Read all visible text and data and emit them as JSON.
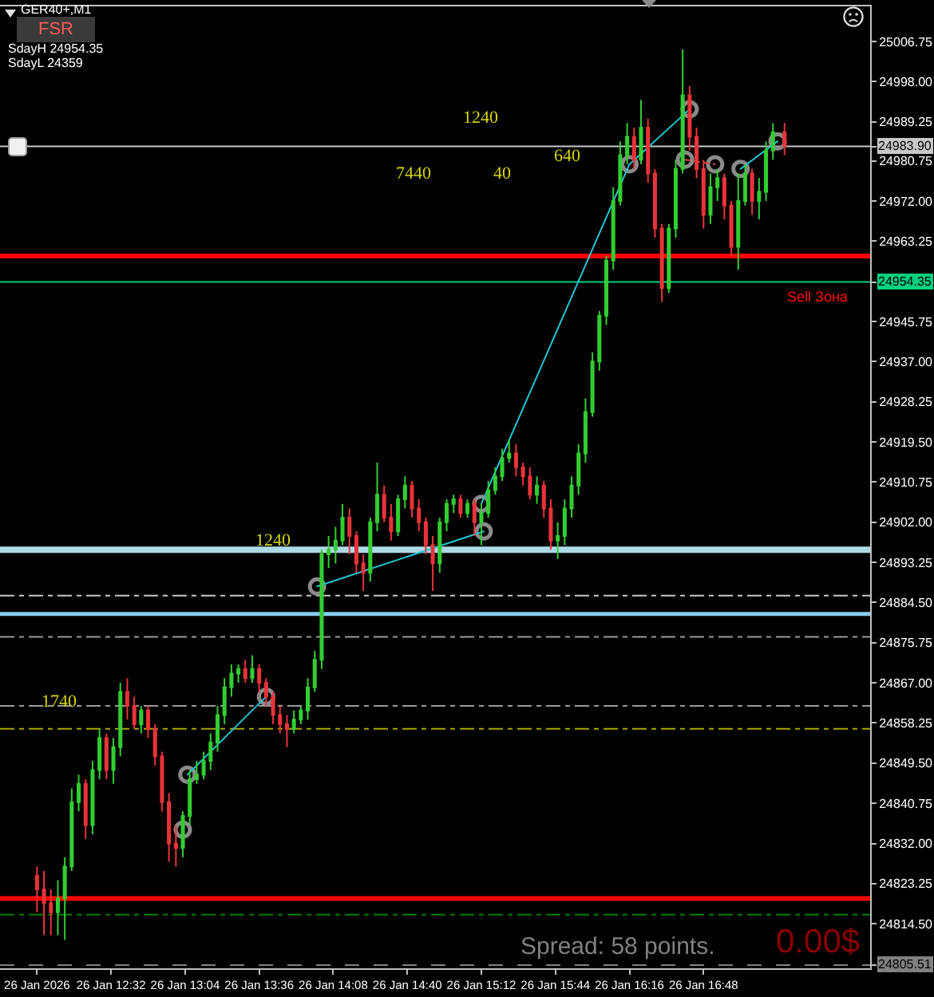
{
  "chart_data": {
    "type": "candlestick",
    "title": "GER40+,M1",
    "xlim": [
      "2026-01-26T11:44",
      "2026-01-26T18:00"
    ],
    "xticks": [
      {
        "value": "2026-01-26T12:00",
        "label": "26 Jan 2026"
      },
      {
        "value": "2026-01-26T12:32",
        "label": "26 Jan 12:32"
      },
      {
        "value": "2026-01-26T13:04",
        "label": "26 Jan 13:04"
      },
      {
        "value": "2026-01-26T13:36",
        "label": "26 Jan 13:36"
      },
      {
        "value": "2026-01-26T14:08",
        "label": "26 Jan 14:08"
      },
      {
        "value": "2026-01-26T14:40",
        "label": "26 Jan 14:40"
      },
      {
        "value": "2026-01-26T15:12",
        "label": "26 Jan 15:12"
      },
      {
        "value": "2026-01-26T15:44",
        "label": "26 Jan 15:44"
      },
      {
        "value": "2026-01-26T16:16",
        "label": "26 Jan 16:16"
      },
      {
        "value": "2026-01-26T16:48",
        "label": "26 Jan 16:48"
      }
    ],
    "ylim": [
      24804.8,
      25014.4
    ],
    "yticks": [
      25006.75,
      {
        "value": 24998,
        "label": "24998.00"
      },
      24989.25,
      {
        "value": 24983.9,
        "label": "24983.90"
      },
      24980.75,
      {
        "value": 24972,
        "label": "24972.00"
      },
      24963.25,
      24954.35,
      24945.75,
      {
        "value": 24937,
        "label": "24937.00"
      },
      24928.25,
      {
        "value": 24919.5,
        "label": "24919.50"
      },
      24910.75,
      {
        "value": 24902,
        "label": "24902.00"
      },
      24893.25,
      {
        "value": 24884.5,
        "label": "24884.50"
      },
      24875.75,
      {
        "value": 24867,
        "label": "24867.00"
      },
      24858.25,
      {
        "value": 24849.5,
        "label": "24849.50"
      },
      24840.75,
      {
        "value": 24832,
        "label": "24832.00"
      },
      24823.25,
      {
        "value": 24814.5,
        "label": "24814.50"
      },
      24805.51
    ],
    "grid": false,
    "ref_lines": [
      {
        "axis": "y",
        "value": 24983.9,
        "color": "#c8c8c8",
        "line_style": "solid"
      },
      {
        "axis": "y",
        "value": 24960,
        "color": "#ff0000",
        "line_style": "solid",
        "label": "Sell Зона"
      },
      {
        "axis": "y",
        "value": 24954.35,
        "color": "#00d080",
        "line_style": "solid"
      },
      {
        "axis": "y",
        "value": 24896,
        "color": "#add8e6",
        "line_style": "solid"
      },
      {
        "axis": "y",
        "value": 24886,
        "color": "#c8c8c8",
        "line_style": "dashdot"
      },
      {
        "axis": "y",
        "value": 24882,
        "color": "#87ceeb",
        "line_style": "solid"
      },
      {
        "axis": "y",
        "value": 24877,
        "color": "#9a9a9a",
        "line_style": "dashdot"
      },
      {
        "axis": "y",
        "value": 24862,
        "color": "#9a9a9a",
        "line_style": "dashdot"
      },
      {
        "axis": "y",
        "value": 24857,
        "color": "#a8a800",
        "line_style": "dashdot"
      },
      {
        "axis": "y",
        "value": 24820,
        "color": "#ff0000",
        "line_style": "solid"
      },
      {
        "axis": "y",
        "value": 24816.5,
        "color": "#008000",
        "line_style": "dashdot"
      },
      {
        "axis": "y",
        "value": 24805.51,
        "color": "#808080",
        "line_style": "dashed"
      }
    ],
    "annotations": [
      "FSR",
      "SdayH 24954.35",
      "SdayL 24359",
      "1240",
      "7440",
      "40",
      "640",
      "Spread: 58 points.",
      "0.00$",
      {
        "text": "1240",
        "x": "2026-01-26T13:42",
        "y": 24898
      },
      {
        "text": "1740",
        "x": "2026-01-26T12:10",
        "y": 24863
      }
    ],
    "series": [
      {
        "type": "scatter",
        "marker": "circle",
        "color": "#8a8a8a",
        "x": [
          "2026-01-26T13:03",
          "2026-01-26T13:05",
          "2026-01-26T13:39",
          "2026-01-26T14:01",
          "2026-01-26T15:12",
          "2026-01-26T15:13",
          "2026-01-26T16:16",
          "2026-01-26T16:42",
          "2026-01-26T16:40",
          "2026-01-26T16:53",
          "2026-01-26T17:04",
          "2026-01-26T17:20"
        ],
        "values": [
          24835,
          24847,
          24864,
          24888,
          24906,
          24900,
          24980,
          24992,
          24981,
          24980,
          24979,
          24985
        ]
      },
      {
        "type": "line",
        "color": "#22c4d4",
        "line_style": "solid",
        "x": [
          "2026-01-26T13:05",
          "2026-01-26T13:39"
        ],
        "values": [
          24847,
          24864
        ]
      },
      {
        "type": "line",
        "color": "#22c4d4",
        "line_style": "solid",
        "x": [
          "2026-01-26T14:01",
          "2026-01-26T15:13"
        ],
        "values": [
          24888,
          24900
        ]
      },
      {
        "type": "line",
        "color": "#22c4d4",
        "line_style": "solid",
        "x": [
          "2026-01-26T15:12",
          "2026-01-26T16:16",
          "2026-01-26T16:42"
        ],
        "values": [
          24906,
          24980,
          24992
        ]
      },
      {
        "type": "line",
        "color": "#22c4d4",
        "line_style": "solid",
        "x": [
          "2026-01-26T17:04",
          "2026-01-26T17:20"
        ],
        "values": [
          24979,
          24985
        ]
      },
      {
        "type": "line",
        "color": "#e04040",
        "line_style": "dotted",
        "x": [
          "2026-01-26T16:40",
          "2026-01-26T16:53"
        ],
        "values": [
          24981,
          24980
        ]
      },
      {
        "x": [
          "2026-01-26T12:00",
          "2026-01-26T12:03",
          "2026-01-26T12:06",
          "2026-01-26T12:09",
          "2026-01-26T12:12",
          "2026-01-26T12:15",
          "2026-01-26T12:18",
          "2026-01-26T12:21",
          "2026-01-26T12:24",
          "2026-01-26T12:27",
          "2026-01-26T12:30",
          "2026-01-26T12:33",
          "2026-01-26T12:36",
          "2026-01-26T12:39",
          "2026-01-26T12:42",
          "2026-01-26T12:45",
          "2026-01-26T12:48",
          "2026-01-26T12:51",
          "2026-01-26T12:54",
          "2026-01-26T12:57",
          "2026-01-26T13:00",
          "2026-01-26T13:03",
          "2026-01-26T13:06",
          "2026-01-26T13:09",
          "2026-01-26T13:12",
          "2026-01-26T13:15",
          "2026-01-26T13:18",
          "2026-01-26T13:21",
          "2026-01-26T13:24",
          "2026-01-26T13:27",
          "2026-01-26T13:30",
          "2026-01-26T13:33",
          "2026-01-26T13:36",
          "2026-01-26T13:39",
          "2026-01-26T13:42",
          "2026-01-26T13:45",
          "2026-01-26T13:48",
          "2026-01-26T13:51",
          "2026-01-26T13:54",
          "2026-01-26T13:57",
          "2026-01-26T14:00",
          "2026-01-26T14:03",
          "2026-01-26T14:06",
          "2026-01-26T14:09",
          "2026-01-26T14:12",
          "2026-01-26T14:15",
          "2026-01-26T14:18",
          "2026-01-26T14:21",
          "2026-01-26T14:24",
          "2026-01-26T14:27",
          "2026-01-26T14:30",
          "2026-01-26T14:33",
          "2026-01-26T14:36",
          "2026-01-26T14:39",
          "2026-01-26T14:42",
          "2026-01-26T14:45",
          "2026-01-26T14:48",
          "2026-01-26T14:51",
          "2026-01-26T14:54",
          "2026-01-26T14:57",
          "2026-01-26T15:00",
          "2026-01-26T15:03",
          "2026-01-26T15:06",
          "2026-01-26T15:09",
          "2026-01-26T15:12",
          "2026-01-26T15:15",
          "2026-01-26T15:18",
          "2026-01-26T15:21",
          "2026-01-26T15:24",
          "2026-01-26T15:27",
          "2026-01-26T15:30",
          "2026-01-26T15:33",
          "2026-01-26T15:36",
          "2026-01-26T15:39",
          "2026-01-26T15:42",
          "2026-01-26T15:45",
          "2026-01-26T15:48",
          "2026-01-26T15:51",
          "2026-01-26T15:54",
          "2026-01-26T15:57",
          "2026-01-26T16:00",
          "2026-01-26T16:03",
          "2026-01-26T16:06",
          "2026-01-26T16:09",
          "2026-01-26T16:12",
          "2026-01-26T16:15",
          "2026-01-26T16:18",
          "2026-01-26T16:21",
          "2026-01-26T16:24",
          "2026-01-26T16:27",
          "2026-01-26T16:30",
          "2026-01-26T16:33",
          "2026-01-26T16:36",
          "2026-01-26T16:39",
          "2026-01-26T16:42",
          "2026-01-26T16:45",
          "2026-01-26T16:48",
          "2026-01-26T16:51",
          "2026-01-26T16:54",
          "2026-01-26T16:57",
          "2026-01-26T17:00",
          "2026-01-26T17:03",
          "2026-01-26T17:06",
          "2026-01-26T17:09",
          "2026-01-26T17:12",
          "2026-01-26T17:15",
          "2026-01-26T17:18",
          "2026-01-26T17:23"
        ],
        "ohlc": [
          [
            24825,
            24827,
            24817,
            24822
          ],
          [
            24822,
            24826,
            24812,
            24819
          ],
          [
            24819,
            24822,
            24812,
            24817
          ],
          [
            24817,
            24824,
            24812,
            24820
          ],
          [
            24820,
            24829,
            24811,
            24827
          ],
          [
            24827,
            24844,
            24826,
            24841
          ],
          [
            24841,
            24847,
            24839,
            24845
          ],
          [
            24845,
            24846,
            24833,
            24836
          ],
          [
            24836,
            24850,
            24834,
            24848
          ],
          [
            24848,
            24857,
            24846,
            24855
          ],
          [
            24855,
            24856,
            24846,
            24848
          ],
          [
            24848,
            24855,
            24845,
            24853
          ],
          [
            24853,
            24867,
            24851,
            24865
          ],
          [
            24865,
            24868,
            24859,
            24862
          ],
          [
            24862,
            24864,
            24857,
            24858
          ],
          [
            24858,
            24862,
            24856,
            24861
          ],
          [
            24861,
            24862,
            24855,
            24857
          ],
          [
            24857,
            24858,
            24849,
            24851
          ],
          [
            24851,
            24852,
            24839,
            24841
          ],
          [
            24841,
            24843,
            24828,
            24832
          ],
          [
            24832,
            24836,
            24827,
            24831
          ],
          [
            24831,
            24839,
            24829,
            24838
          ],
          [
            24838,
            24848,
            24836,
            24846
          ],
          [
            24846,
            24850,
            24845,
            24847
          ],
          [
            24847,
            24852,
            24846,
            24850
          ],
          [
            24850,
            24856,
            24848,
            24854
          ],
          [
            24854,
            24862,
            24852,
            24860
          ],
          [
            24860,
            24868,
            24858,
            24866
          ],
          [
            24866,
            24871,
            24864,
            24869
          ],
          [
            24869,
            24871,
            24867,
            24870
          ],
          [
            24870,
            24872,
            24867,
            24868
          ],
          [
            24868,
            24873,
            24867,
            24870
          ],
          [
            24870,
            24871,
            24865,
            24867
          ],
          [
            24867,
            24868,
            24862,
            24864
          ],
          [
            24864,
            24865,
            24858,
            24860
          ],
          [
            24860,
            24862,
            24856,
            24858
          ],
          [
            24858,
            24860,
            24853,
            24857
          ],
          [
            24857,
            24861,
            24856,
            24859
          ],
          [
            24859,
            24862,
            24858,
            24861
          ],
          [
            24861,
            24868,
            24859,
            24866
          ],
          [
            24866,
            24874,
            24865,
            24872
          ],
          [
            24872,
            24896,
            24870,
            24895
          ],
          [
            24895,
            24899,
            24892,
            24896
          ],
          [
            24896,
            24901,
            24893,
            24898
          ],
          [
            24898,
            24906,
            24897,
            24903
          ],
          [
            24903,
            24905,
            24895,
            24899
          ],
          [
            24899,
            24900,
            24891,
            24893
          ],
          [
            24893,
            24895,
            24887,
            24891
          ],
          [
            24891,
            24903,
            24889,
            24902
          ],
          [
            24902,
            24915,
            24900,
            24908
          ],
          [
            24908,
            24910,
            24902,
            24903
          ],
          [
            24903,
            24906,
            24898,
            24900
          ],
          [
            24900,
            24908,
            24899,
            24907
          ],
          [
            24907,
            24912,
            24905,
            24910
          ],
          [
            24910,
            24911,
            24903,
            24905
          ],
          [
            24905,
            24907,
            24900,
            24902
          ],
          [
            24902,
            24903,
            24895,
            24897
          ],
          [
            24897,
            24899,
            24887,
            24893
          ],
          [
            24893,
            24903,
            24891,
            24902
          ],
          [
            24902,
            24907,
            24900,
            24906
          ],
          [
            24906,
            24908,
            24904,
            24907
          ],
          [
            24907,
            24908,
            24903,
            24904
          ],
          [
            24904,
            24907,
            24903,
            24906
          ],
          [
            24906,
            24907,
            24899,
            24902
          ],
          [
            24902,
            24906,
            24897,
            24904
          ],
          [
            24904,
            24911,
            24903,
            24909
          ],
          [
            24909,
            24914,
            24908,
            24912
          ],
          [
            24912,
            24918,
            24911,
            24916
          ],
          [
            24916,
            24920,
            24915,
            24917
          ],
          [
            24917,
            24919,
            24912,
            24914
          ],
          [
            24914,
            24915,
            24910,
            24912
          ],
          [
            24912,
            24914,
            24907,
            24908
          ],
          [
            24908,
            24912,
            24906,
            24910
          ],
          [
            24910,
            24911,
            24903,
            24905
          ],
          [
            24905,
            24907,
            24896,
            24898
          ],
          [
            24898,
            24902,
            24894,
            24899
          ],
          [
            24899,
            24907,
            24897,
            24905
          ],
          [
            24905,
            24912,
            24903,
            24910
          ],
          [
            24910,
            24919,
            24908,
            24917
          ],
          [
            24917,
            24929,
            24915,
            24926
          ],
          [
            24926,
            24939,
            24925,
            24937
          ],
          [
            24937,
            24948,
            24935,
            24947
          ],
          [
            24947,
            24960,
            24945,
            24959
          ],
          [
            24959,
            24975,
            24957,
            24972
          ],
          [
            24972,
            24985,
            24971,
            24982
          ],
          [
            24982,
            24989,
            24980,
            24986
          ],
          [
            24986,
            24988,
            24979,
            24981
          ],
          [
            24981,
            24994,
            24980,
            24988
          ],
          [
            24988,
            24990,
            24976,
            24978
          ],
          [
            24978,
            24979,
            24964,
            24966
          ],
          [
            24966,
            24967,
            24950,
            24953
          ],
          [
            24953,
            24967,
            24952,
            24966
          ],
          [
            24966,
            24981,
            24964,
            24979
          ],
          [
            24979,
            25005,
            24978,
            24995
          ],
          [
            24995,
            24997,
            24983,
            24986
          ],
          [
            24986,
            24988,
            24977,
            24979
          ],
          [
            24979,
            24981,
            24966,
            24969
          ],
          [
            24969,
            24978,
            24967,
            24975
          ],
          [
            24975,
            24979,
            24972,
            24977
          ],
          [
            24977,
            24978,
            24968,
            24971
          ],
          [
            24971,
            24972,
            24960,
            24962
          ],
          [
            24962,
            24978,
            24957,
            24972
          ],
          [
            24972,
            24980,
            24971,
            24978
          ],
          [
            24978,
            24979,
            24969,
            24972
          ],
          [
            24972,
            24977,
            24968,
            24974
          ],
          [
            24974,
            24985,
            24972,
            24983
          ],
          [
            24983,
            24989,
            24981,
            24987
          ],
          [
            24987,
            24989,
            24982,
            24983.9
          ]
        ],
        "colors": [
          "#e8333a",
          "#e8333a",
          "#e8333a",
          "#32cd32",
          "#32cd32",
          "#32cd32",
          "#32cd32",
          "#e8333a",
          "#32cd32",
          "#32cd32",
          "#e8333a",
          "#32cd32",
          "#32cd32",
          "#e8333a",
          "#e8333a",
          "#32cd32",
          "#e8333a",
          "#e8333a",
          "#e8333a",
          "#e8333a",
          "#e8333a",
          "#32cd32",
          "#32cd32",
          "#32cd32",
          "#32cd32",
          "#32cd32",
          "#32cd32",
          "#32cd32",
          "#32cd32",
          "#32cd32",
          "#e8333a",
          "#32cd32",
          "#e8333a",
          "#e8333a",
          "#e8333a",
          "#e8333a",
          "#e8333a",
          "#32cd32",
          "#32cd32",
          "#32cd32",
          "#32cd32",
          "#32cd32",
          "#32cd32",
          "#32cd32",
          "#32cd32",
          "#e8333a",
          "#e8333a",
          "#e8333a",
          "#32cd32",
          "#32cd32",
          "#e8333a",
          "#e8333a",
          "#32cd32",
          "#32cd32",
          "#e8333a",
          "#e8333a",
          "#e8333a",
          "#e8333a",
          "#32cd32",
          "#32cd32",
          "#32cd32",
          "#e8333a",
          "#32cd32",
          "#e8333a",
          "#32cd32",
          "#32cd32",
          "#32cd32",
          "#32cd32",
          "#32cd32",
          "#e8333a",
          "#e8333a",
          "#e8333a",
          "#32cd32",
          "#e8333a",
          "#e8333a",
          "#32cd32",
          "#32cd32",
          "#32cd32",
          "#32cd32",
          "#32cd32",
          "#32cd32",
          "#32cd32",
          "#32cd32",
          "#32cd32",
          "#32cd32",
          "#32cd32",
          "#e8333a",
          "#32cd32",
          "#e8333a",
          "#e8333a",
          "#e8333a",
          "#32cd32",
          "#32cd32",
          "#32cd32",
          "#e8333a",
          "#e8333a",
          "#e8333a",
          "#32cd32",
          "#32cd32",
          "#e8333a",
          "#e8333a",
          "#32cd32",
          "#32cd32",
          "#e8333a",
          "#32cd32",
          "#32cd32",
          "#32cd32",
          "#e8333a"
        ]
      }
    ]
  }
}
